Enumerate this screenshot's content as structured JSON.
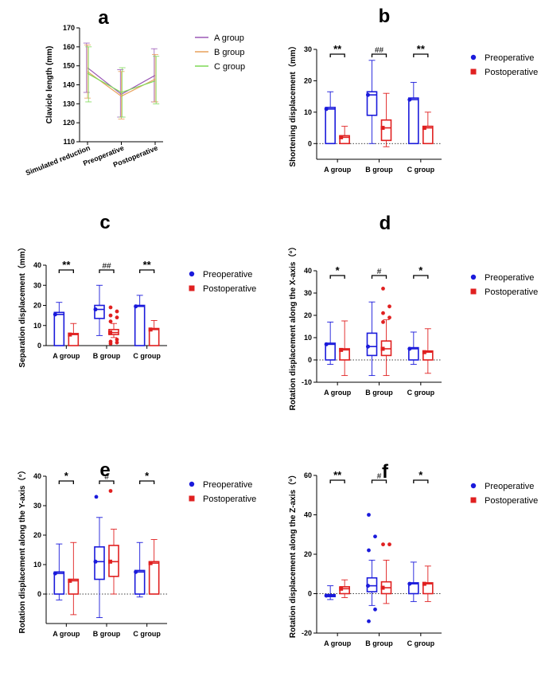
{
  "chart_data": [
    {
      "type": "line",
      "panel": "a",
      "title": "a",
      "xlabel": "",
      "ylabel": "Clavicle length (mm)",
      "ylim": [
        110,
        170
      ],
      "yticks": [
        110,
        120,
        130,
        140,
        150,
        160,
        170
      ],
      "categories": [
        "Simulated reduction",
        "Preoperative",
        "Postoperative"
      ],
      "legend_position": "top-right",
      "series": [
        {
          "name": "A group",
          "color": "#9b59b6",
          "values": [
            149,
            135,
            145
          ],
          "err_low": [
            136,
            123,
            131
          ],
          "err_high": [
            162,
            148,
            159
          ]
        },
        {
          "name": "B group",
          "color": "#e8a05a",
          "values": [
            147,
            134,
            143
          ],
          "err_low": [
            133,
            122,
            131
          ],
          "err_high": [
            161,
            147,
            156
          ]
        },
        {
          "name": "C group",
          "color": "#7ed957",
          "values": [
            146,
            136,
            142
          ],
          "err_low": [
            131,
            123,
            130
          ],
          "err_high": [
            160,
            149,
            155
          ]
        }
      ]
    },
    {
      "type": "bar",
      "panel": "b",
      "title": "b",
      "ylabel": "Shortening displacement（mm）",
      "ylim": [
        -5,
        30
      ],
      "yticks": [
        0,
        10,
        20,
        30
      ],
      "categories": [
        "A group",
        "B group",
        "C group"
      ],
      "legend_position": "right",
      "series": [
        {
          "name": "Preoperative",
          "color": "#1a1adb",
          "marker": "circle",
          "boxes": [
            {
              "q1": 0,
              "med": 11,
              "q3": 11.5,
              "wlo": 0,
              "whi": 16.5,
              "out": []
            },
            {
              "q1": 9,
              "med": 15.5,
              "q3": 16.5,
              "wlo": 0,
              "whi": 26.5,
              "out": []
            },
            {
              "q1": 0,
              "med": 14,
              "q3": 14.5,
              "wlo": 0,
              "whi": 19.5,
              "out": []
            }
          ]
        },
        {
          "name": "Postoperative",
          "color": "#e02020",
          "marker": "square",
          "boxes": [
            {
              "q1": 0,
              "med": 2,
              "q3": 2.5,
              "wlo": 0,
              "whi": 5.5,
              "out": []
            },
            {
              "q1": 1,
              "med": 5,
              "q3": 7.5,
              "wlo": -1,
              "whi": 16,
              "out": []
            },
            {
              "q1": 0,
              "med": 5,
              "q3": 5.5,
              "wlo": 0,
              "whi": 10,
              "out": []
            }
          ]
        }
      ],
      "annotations": [
        "**",
        "##",
        "**"
      ]
    },
    {
      "type": "bar",
      "panel": "c",
      "title": "c",
      "ylabel": "Separation displacement（mm）",
      "ylim": [
        0,
        40
      ],
      "yticks": [
        0,
        10,
        20,
        30,
        40
      ],
      "categories": [
        "A group",
        "B group",
        "C group"
      ],
      "legend_position": "right",
      "series": [
        {
          "name": "Preoperative",
          "color": "#1a1adb",
          "marker": "circle",
          "boxes": [
            {
              "q1": 0,
              "med": 15.5,
              "q3": 16.5,
              "wlo": 0,
              "whi": 21.5,
              "out": []
            },
            {
              "q1": 13.5,
              "med": 18,
              "q3": 20,
              "wlo": 5,
              "whi": 30,
              "out": []
            },
            {
              "q1": 0,
              "med": 19.5,
              "q3": 20,
              "wlo": 0,
              "whi": 25,
              "out": []
            }
          ]
        },
        {
          "name": "Postoperative",
          "color": "#e02020",
          "marker": "square",
          "boxes": [
            {
              "q1": 0,
              "med": 5.5,
              "q3": 6,
              "wlo": 0,
              "whi": 11,
              "out": []
            },
            {
              "q1": 5.5,
              "med": 6.5,
              "q3": 8,
              "wlo": 4,
              "whi": 11,
              "out": [
                19,
                17,
                15,
                14,
                12,
                3,
                2,
                1.5,
                1
              ]
            },
            {
              "q1": 0,
              "med": 8,
              "q3": 8.5,
              "wlo": 0,
              "whi": 12.5,
              "out": []
            }
          ]
        }
      ],
      "annotations": [
        "**",
        "##",
        "**"
      ]
    },
    {
      "type": "bar",
      "panel": "d",
      "title": "d",
      "ylabel": "Rotation displacement along the X-axis（°）",
      "ylim": [
        -10,
        40
      ],
      "yticks": [
        -10,
        0,
        10,
        20,
        30,
        40
      ],
      "categories": [
        "A group",
        "B group",
        "C group"
      ],
      "legend_position": "right",
      "series": [
        {
          "name": "Preoperative",
          "color": "#1a1adb",
          "marker": "circle",
          "boxes": [
            {
              "q1": 0,
              "med": 7,
              "q3": 7.5,
              "wlo": -2,
              "whi": 17,
              "out": []
            },
            {
              "q1": 2,
              "med": 6,
              "q3": 12,
              "wlo": -7,
              "whi": 26,
              "out": []
            },
            {
              "q1": 0,
              "med": 5,
              "q3": 5.5,
              "wlo": -2,
              "whi": 12.5,
              "out": []
            }
          ]
        },
        {
          "name": "Postoperative",
          "color": "#e02020",
          "marker": "square",
          "boxes": [
            {
              "q1": 0,
              "med": 4.5,
              "q3": 5,
              "wlo": -7,
              "whi": 17.5,
              "out": []
            },
            {
              "q1": 2,
              "med": 5,
              "q3": 8.5,
              "wlo": -7,
              "whi": 18,
              "out": [
                32,
                24,
                21,
                19,
                17
              ]
            },
            {
              "q1": 0,
              "med": 3.5,
              "q3": 4,
              "wlo": -6,
              "whi": 14,
              "out": []
            }
          ]
        }
      ],
      "annotations": [
        "*",
        "#",
        "*"
      ]
    },
    {
      "type": "bar",
      "panel": "e",
      "title": "e",
      "ylabel": "Rotation displacement along the Y-axis（°）",
      "ylim": [
        -10,
        40
      ],
      "yticks": [
        0,
        10,
        20,
        30,
        40
      ],
      "categories": [
        "A group",
        "B group",
        "C group"
      ],
      "legend_position": "right",
      "series": [
        {
          "name": "Preoperative",
          "color": "#1a1adb",
          "marker": "circle",
          "boxes": [
            {
              "q1": 0,
              "med": 7,
              "q3": 7.5,
              "wlo": -2,
              "whi": 17,
              "out": []
            },
            {
              "q1": 5,
              "med": 11,
              "q3": 16,
              "wlo": -8,
              "whi": 26,
              "out": [
                33
              ]
            },
            {
              "q1": 0,
              "med": 7.5,
              "q3": 8,
              "wlo": -1,
              "whi": 17.5,
              "out": []
            }
          ]
        },
        {
          "name": "Postoperative",
          "color": "#e02020",
          "marker": "square",
          "boxes": [
            {
              "q1": 0,
              "med": 4.5,
              "q3": 5,
              "wlo": -7,
              "whi": 17.5,
              "out": []
            },
            {
              "q1": 6,
              "med": 11,
              "q3": 16.5,
              "wlo": 0,
              "whi": 22,
              "out": [
                35
              ]
            },
            {
              "q1": 0,
              "med": 10.5,
              "q3": 11,
              "wlo": 0,
              "whi": 18.5,
              "out": []
            }
          ]
        }
      ],
      "annotations": [
        "*",
        "#",
        "*"
      ]
    },
    {
      "type": "bar",
      "panel": "f",
      "title": "f",
      "ylabel": "Rotation displacement along the Z-axis（°）",
      "ylim": [
        -20,
        60
      ],
      "yticks": [
        -20,
        0,
        20,
        40,
        60
      ],
      "categories": [
        "A group",
        "B group",
        "C group"
      ],
      "legend_position": "right",
      "series": [
        {
          "name": "Preoperative",
          "color": "#1a1adb",
          "marker": "circle",
          "boxes": [
            {
              "q1": -1.5,
              "med": -1,
              "q3": -0.5,
              "wlo": -3,
              "whi": 4,
              "out": []
            },
            {
              "q1": 1,
              "med": 4,
              "q3": 8,
              "wlo": -6,
              "whi": 17,
              "out": [
                40,
                29,
                22,
                -8,
                -14
              ]
            },
            {
              "q1": 0,
              "med": 5,
              "q3": 5.5,
              "wlo": -4,
              "whi": 16,
              "out": []
            }
          ]
        },
        {
          "name": "Postoperative",
          "color": "#e02020",
          "marker": "square",
          "boxes": [
            {
              "q1": 0,
              "med": 2.5,
              "q3": 3.5,
              "wlo": -2,
              "whi": 7,
              "out": []
            },
            {
              "q1": 0,
              "med": 3,
              "q3": 6,
              "wlo": -5,
              "whi": 17,
              "out": [
                25,
                25
              ]
            },
            {
              "q1": 0,
              "med": 5,
              "q3": 5.5,
              "wlo": -4,
              "whi": 14,
              "out": []
            }
          ]
        }
      ],
      "annotations": [
        "**",
        "#",
        "*"
      ]
    }
  ]
}
